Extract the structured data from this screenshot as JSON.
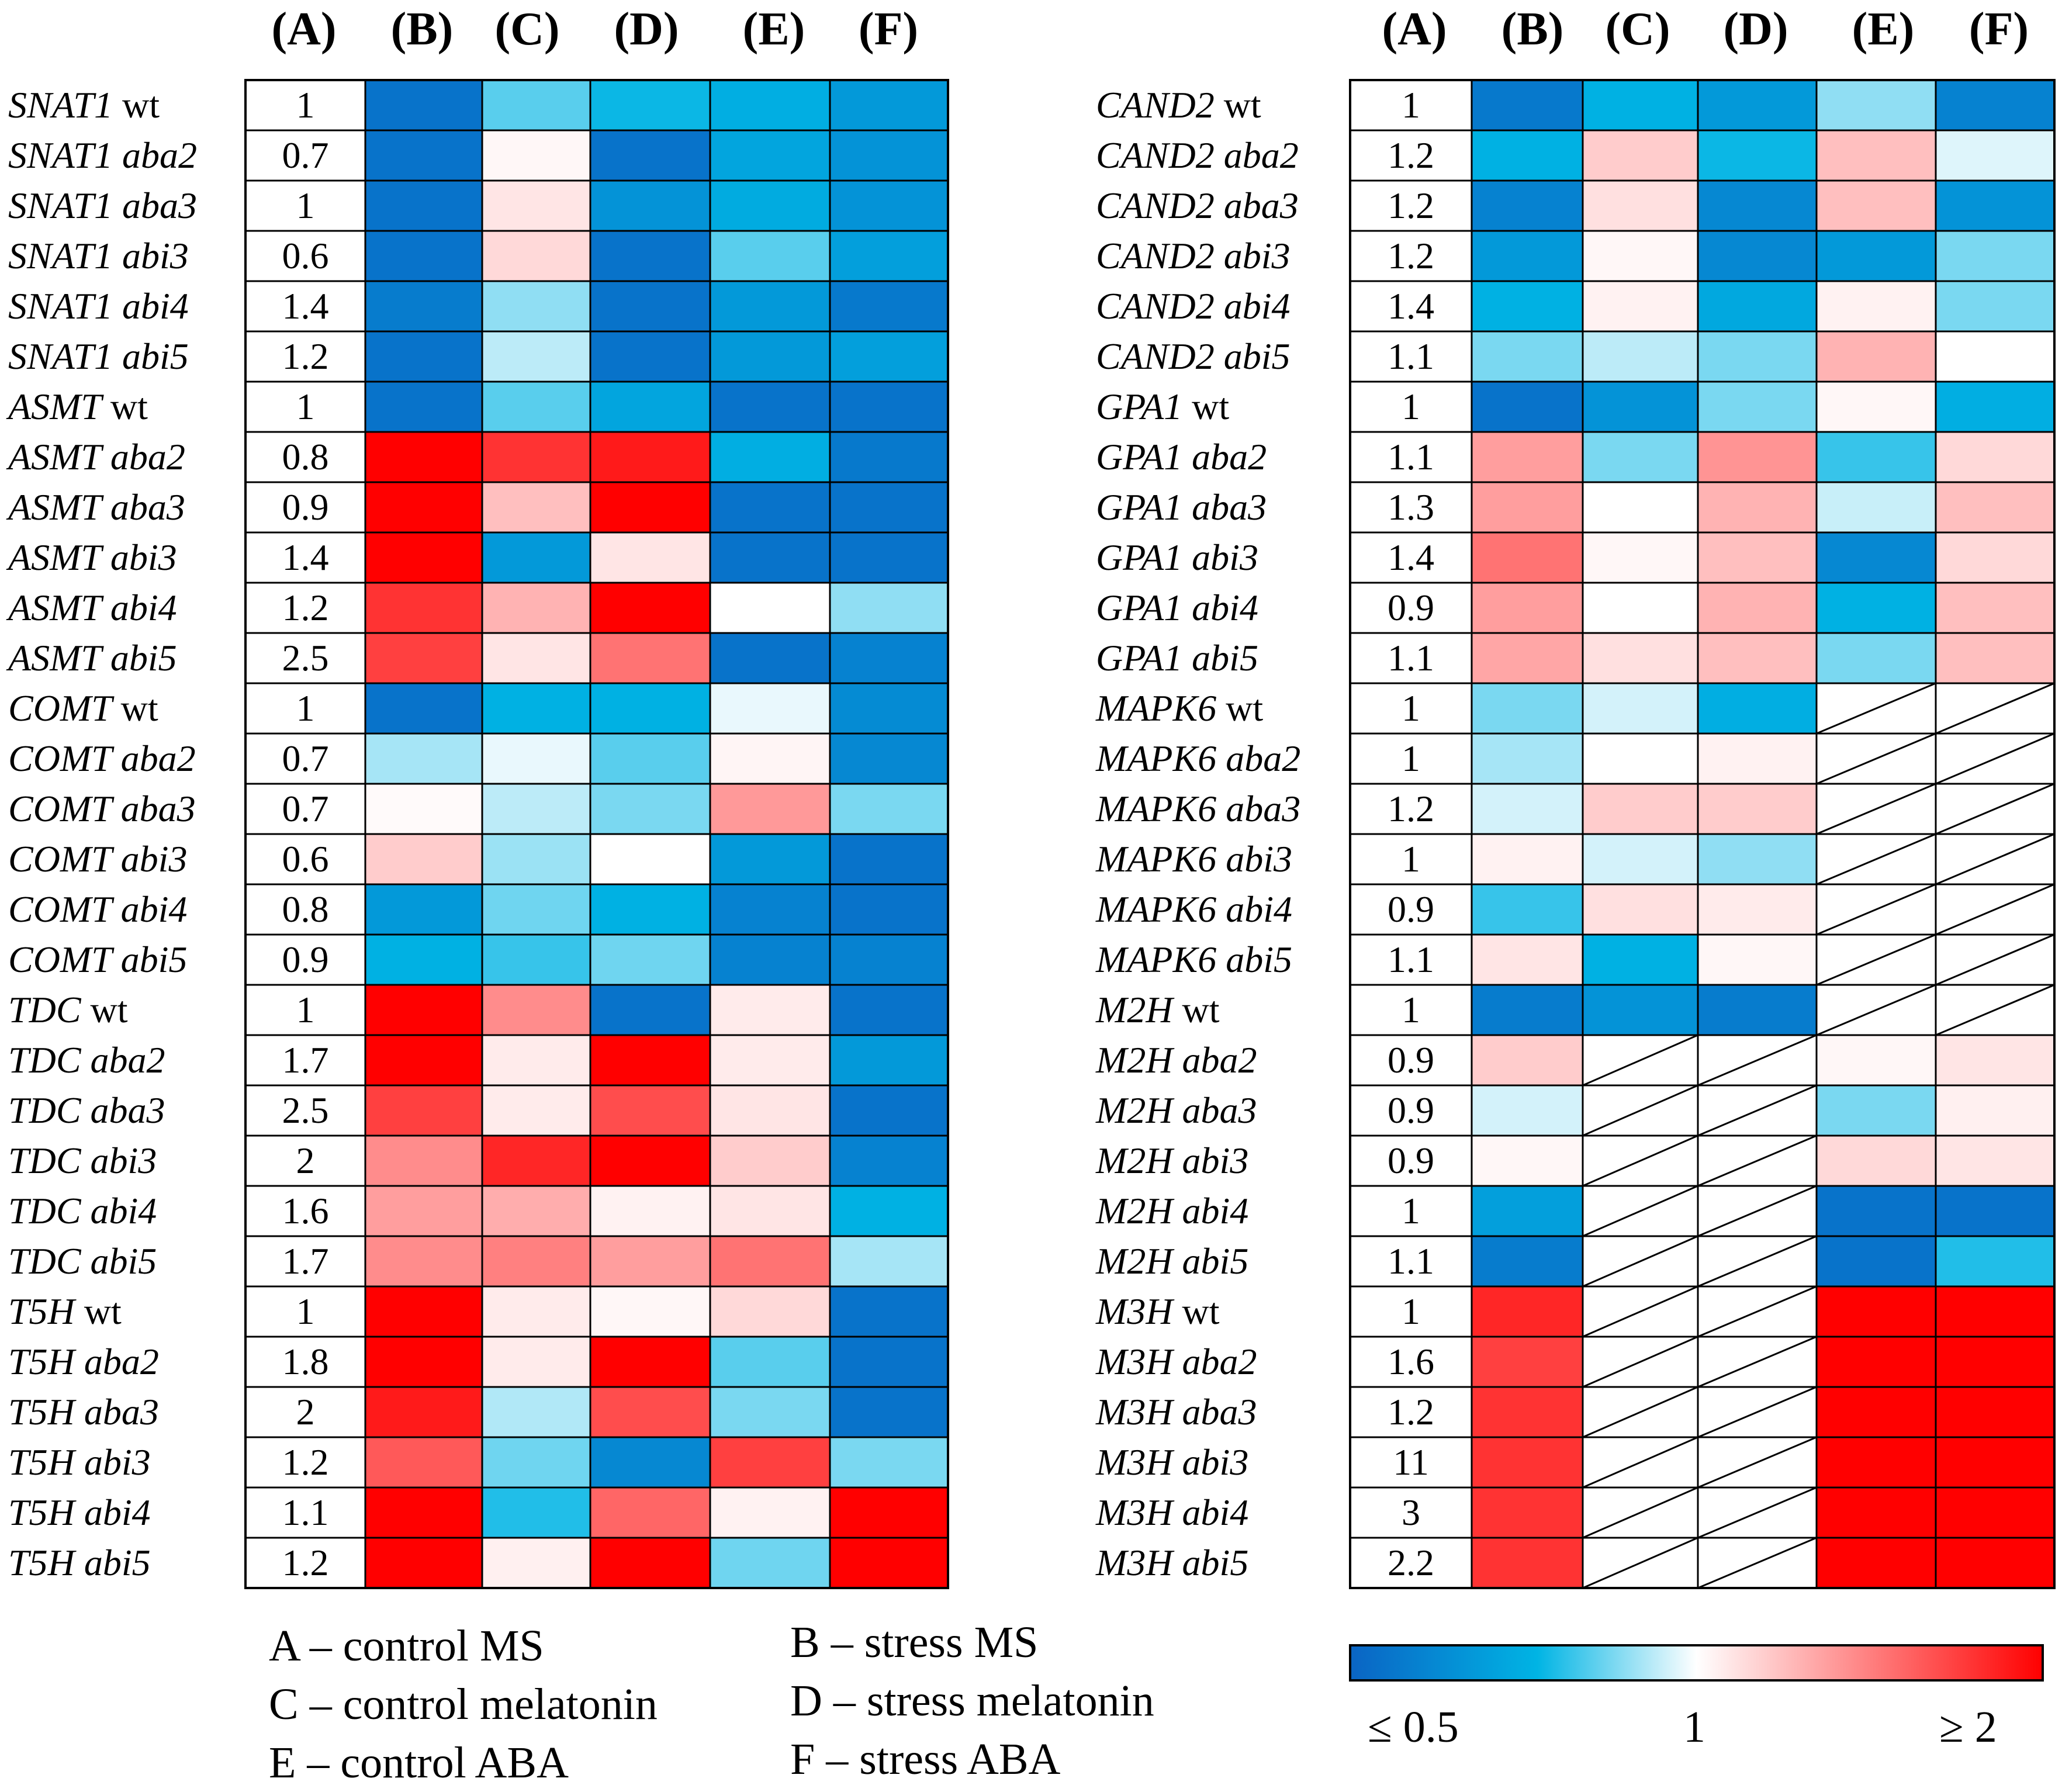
{
  "chart_data": [
    {
      "type": "heatmap",
      "columns": [
        "(A)",
        "(B)",
        "(C)",
        "(D)",
        "(E)",
        "(F)"
      ],
      "rows": [
        {
          "gene": "SNAT1",
          "genotype": "wt",
          "A": "1",
          "values": [
            0.55,
            0.85,
            0.78,
            0.75,
            0.68
          ]
        },
        {
          "gene": "SNAT1",
          "genotype": "aba2",
          "A": "0.7",
          "values": [
            0.55,
            1.03,
            0.55,
            0.72,
            0.66
          ]
        },
        {
          "gene": "SNAT1",
          "genotype": "aba3",
          "A": "1",
          "values": [
            0.55,
            1.1,
            0.66,
            0.74,
            0.66
          ]
        },
        {
          "gene": "SNAT1",
          "genotype": "abi3",
          "A": "0.6",
          "values": [
            0.55,
            1.15,
            0.55,
            0.85,
            0.7
          ]
        },
        {
          "gene": "SNAT1",
          "genotype": "abi4",
          "A": "1.4",
          "values": [
            0.58,
            0.9,
            0.55,
            0.68,
            0.57
          ]
        },
        {
          "gene": "SNAT1",
          "genotype": "abi5",
          "A": "1.2",
          "values": [
            0.55,
            0.94,
            0.55,
            0.68,
            0.7
          ]
        },
        {
          "gene": "ASMT",
          "genotype": "wt",
          "A": "1",
          "values": [
            0.55,
            0.85,
            0.72,
            0.55,
            0.55
          ]
        },
        {
          "gene": "ASMT",
          "genotype": "aba2",
          "A": "0.8",
          "values": [
            2.0,
            1.8,
            1.9,
            0.75,
            0.57
          ]
        },
        {
          "gene": "ASMT",
          "genotype": "aba3",
          "A": "0.9",
          "values": [
            2.0,
            1.25,
            2.0,
            0.55,
            0.55
          ]
        },
        {
          "gene": "ASMT",
          "genotype": "abi3",
          "A": "1.4",
          "values": [
            2.0,
            0.68,
            1.1,
            0.55,
            0.55
          ]
        },
        {
          "gene": "ASMT",
          "genotype": "abi4",
          "A": "1.2",
          "values": [
            1.8,
            1.3,
            2.0,
            1.0,
            0.9
          ]
        },
        {
          "gene": "ASMT",
          "genotype": "abi5",
          "A": "2.5",
          "values": [
            1.75,
            1.1,
            1.55,
            0.55,
            0.6
          ]
        },
        {
          "gene": "COMT",
          "genotype": "wt",
          "A": "1",
          "values": [
            0.55,
            0.76,
            0.76,
            0.98,
            0.63
          ]
        },
        {
          "gene": "COMT",
          "genotype": "aba2",
          "A": "0.7",
          "values": [
            0.92,
            0.98,
            0.85,
            1.04,
            0.62
          ]
        },
        {
          "gene": "COMT",
          "genotype": "aba3",
          "A": "0.7",
          "values": [
            1.02,
            0.94,
            0.88,
            1.4,
            0.88
          ]
        },
        {
          "gene": "COMT",
          "genotype": "abi3",
          "A": "0.6",
          "values": [
            1.2,
            0.91,
            1.0,
            0.68,
            0.55
          ]
        },
        {
          "gene": "COMT",
          "genotype": "abi4",
          "A": "0.8",
          "values": [
            0.68,
            0.87,
            0.76,
            0.6,
            0.55
          ]
        },
        {
          "gene": "COMT",
          "genotype": "abi5",
          "A": "0.9",
          "values": [
            0.76,
            0.82,
            0.87,
            0.6,
            0.6
          ]
        },
        {
          "gene": "TDC",
          "genotype": "wt",
          "A": "1",
          "values": [
            2.0,
            1.45,
            0.55,
            1.08,
            0.55
          ]
        },
        {
          "gene": "TDC",
          "genotype": "aba2",
          "A": "1.7",
          "values": [
            2.0,
            1.08,
            2.0,
            1.08,
            0.68
          ]
        },
        {
          "gene": "TDC",
          "genotype": "aba3",
          "A": "2.5",
          "values": [
            1.75,
            1.08,
            1.7,
            1.1,
            0.55
          ]
        },
        {
          "gene": "TDC",
          "genotype": "abi3",
          "A": "2",
          "values": [
            1.45,
            1.85,
            2.0,
            1.2,
            0.6
          ]
        },
        {
          "gene": "TDC",
          "genotype": "abi4",
          "A": "1.6",
          "values": [
            1.38,
            1.32,
            1.05,
            1.1,
            0.76
          ]
        },
        {
          "gene": "TDC",
          "genotype": "abi5",
          "A": "1.7",
          "values": [
            1.45,
            1.5,
            1.38,
            1.55,
            0.92
          ]
        },
        {
          "gene": "T5H",
          "genotype": "wt",
          "A": "1",
          "values": [
            2.0,
            1.08,
            1.03,
            1.15,
            0.55
          ]
        },
        {
          "gene": "T5H",
          "genotype": "aba2",
          "A": "1.8",
          "values": [
            2.0,
            1.08,
            2.0,
            0.85,
            0.55
          ]
        },
        {
          "gene": "T5H",
          "genotype": "aba3",
          "A": "2",
          "values": [
            1.9,
            0.93,
            1.7,
            0.88,
            0.55
          ]
        },
        {
          "gene": "T5H",
          "genotype": "abi3",
          "A": "1.2",
          "values": [
            1.65,
            0.87,
            0.62,
            1.75,
            0.88
          ]
        },
        {
          "gene": "T5H",
          "genotype": "abi4",
          "A": "1.1",
          "values": [
            2.0,
            0.8,
            1.6,
            1.05,
            2.0
          ]
        },
        {
          "gene": "T5H",
          "genotype": "abi5",
          "A": "1.2",
          "values": [
            2.0,
            1.06,
            2.0,
            0.87,
            2.0
          ]
        }
      ]
    },
    {
      "type": "heatmap",
      "columns": [
        "(A)",
        "(B)",
        "(C)",
        "(D)",
        "(E)",
        "(F)"
      ],
      "rows": [
        {
          "gene": "CAND2",
          "genotype": "wt",
          "A": "1",
          "values": [
            0.57,
            0.76,
            0.68,
            0.9,
            0.6
          ]
        },
        {
          "gene": "CAND2",
          "genotype": "aba2",
          "A": "1.2",
          "values": [
            0.76,
            1.2,
            0.78,
            1.25,
            0.97
          ]
        },
        {
          "gene": "CAND2",
          "genotype": "aba3",
          "A": "1.2",
          "values": [
            0.6,
            1.12,
            0.62,
            1.25,
            0.66
          ]
        },
        {
          "gene": "CAND2",
          "genotype": "abi3",
          "A": "1.2",
          "values": [
            0.68,
            1.03,
            0.62,
            0.68,
            0.88
          ]
        },
        {
          "gene": "CAND2",
          "genotype": "abi4",
          "A": "1.4",
          "values": [
            0.76,
            1.05,
            0.73,
            1.05,
            0.88
          ]
        },
        {
          "gene": "CAND2",
          "genotype": "abi5",
          "A": "1.1",
          "values": [
            0.88,
            0.94,
            0.88,
            1.3,
            1.0
          ]
        },
        {
          "gene": "GPA1",
          "genotype": "wt",
          "A": "1",
          "values": [
            0.55,
            0.66,
            0.88,
            1.03,
            0.75
          ]
        },
        {
          "gene": "GPA1",
          "genotype": "aba2",
          "A": "1.1",
          "values": [
            1.38,
            0.88,
            1.42,
            0.82,
            1.15
          ]
        },
        {
          "gene": "GPA1",
          "genotype": "aba3",
          "A": "1.3",
          "values": [
            1.38,
            1.0,
            1.3,
            0.95,
            1.25
          ]
        },
        {
          "gene": "GPA1",
          "genotype": "abi3",
          "A": "1.4",
          "values": [
            1.55,
            1.03,
            1.25,
            0.62,
            1.15
          ]
        },
        {
          "gene": "GPA1",
          "genotype": "abi4",
          "A": "0.9",
          "values": [
            1.38,
            1.0,
            1.3,
            0.76,
            1.25
          ]
        },
        {
          "gene": "GPA1",
          "genotype": "abi5",
          "A": "1.1",
          "values": [
            1.35,
            1.12,
            1.25,
            0.88,
            1.25
          ]
        },
        {
          "gene": "MAPK6",
          "genotype": "wt",
          "A": "1",
          "values": [
            0.88,
            0.96,
            0.75,
            null,
            null
          ]
        },
        {
          "gene": "MAPK6",
          "genotype": "aba2",
          "A": "1",
          "values": [
            0.92,
            1.0,
            1.05,
            null,
            null
          ]
        },
        {
          "gene": "MAPK6",
          "genotype": "aba3",
          "A": "1.2",
          "values": [
            0.96,
            1.2,
            1.2,
            null,
            null
          ]
        },
        {
          "gene": "MAPK6",
          "genotype": "abi3",
          "A": "1",
          "values": [
            1.05,
            0.96,
            0.9,
            null,
            null
          ]
        },
        {
          "gene": "MAPK6",
          "genotype": "abi4",
          "A": "0.9",
          "values": [
            0.82,
            1.12,
            1.08,
            null,
            null
          ]
        },
        {
          "gene": "MAPK6",
          "genotype": "abi5",
          "A": "1.1",
          "values": [
            1.1,
            0.76,
            1.03,
            null,
            null
          ]
        },
        {
          "gene": "M2H",
          "genotype": "wt",
          "A": "1",
          "values": [
            0.58,
            0.66,
            0.58,
            null,
            null
          ]
        },
        {
          "gene": "M2H",
          "genotype": "aba2",
          "A": "0.9",
          "values": [
            1.2,
            null,
            null,
            1.03,
            1.1
          ]
        },
        {
          "gene": "M2H",
          "genotype": "aba3",
          "A": "0.9",
          "values": [
            0.96,
            null,
            null,
            0.88,
            1.06
          ]
        },
        {
          "gene": "M2H",
          "genotype": "abi3",
          "A": "0.9",
          "values": [
            1.03,
            null,
            null,
            1.15,
            1.1
          ]
        },
        {
          "gene": "M2H",
          "genotype": "abi4",
          "A": "1",
          "values": [
            0.7,
            null,
            null,
            0.55,
            0.55
          ]
        },
        {
          "gene": "M2H",
          "genotype": "abi5",
          "A": "1.1",
          "values": [
            0.58,
            null,
            null,
            0.55,
            0.8
          ]
        },
        {
          "gene": "M3H",
          "genotype": "wt",
          "A": "1",
          "values": [
            1.85,
            null,
            null,
            2.0,
            2.0
          ]
        },
        {
          "gene": "M3H",
          "genotype": "aba2",
          "A": "1.6",
          "values": [
            1.75,
            null,
            null,
            2.0,
            2.0
          ]
        },
        {
          "gene": "M3H",
          "genotype": "aba3",
          "A": "1.2",
          "values": [
            1.8,
            null,
            null,
            2.0,
            2.0
          ]
        },
        {
          "gene": "M3H",
          "genotype": "abi3",
          "A": "11",
          "values": [
            1.8,
            null,
            null,
            2.0,
            2.0
          ]
        },
        {
          "gene": "M3H",
          "genotype": "abi4",
          "A": "3",
          "values": [
            1.8,
            null,
            null,
            2.0,
            2.0
          ]
        },
        {
          "gene": "M3H",
          "genotype": "abi5",
          "A": "2.2",
          "values": [
            1.8,
            null,
            null,
            2.0,
            2.0
          ]
        }
      ]
    }
  ],
  "legend": {
    "items": [
      "A – control MS",
      "B – stress MS",
      "C – control melatonin",
      "D – stress melatonin",
      "E – control ABA",
      "F – stress ABA"
    ]
  },
  "color_scale": {
    "min_label": "≤ 0.5",
    "mid_label": "1",
    "max_label": "≥ 2",
    "colors": [
      "#0a64c4",
      "#00b4e4",
      "#ffffff",
      "#ff0000"
    ]
  }
}
